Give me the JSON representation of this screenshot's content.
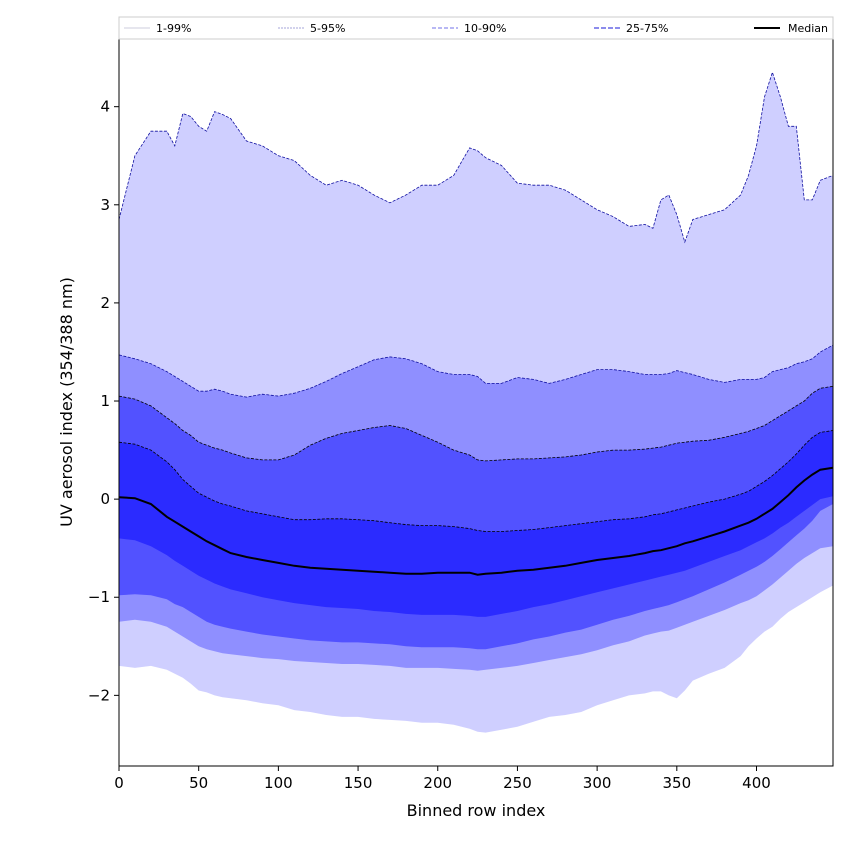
{
  "chart_data": {
    "type": "area",
    "title": "",
    "xlabel": "Binned row index",
    "ylabel": "UV aerosol index (354/388 nm)",
    "xlim": [
      0,
      448
    ],
    "ylim": [
      -2.72,
      4.7
    ],
    "xticks": [
      0,
      50,
      100,
      150,
      200,
      250,
      300,
      350,
      400
    ],
    "yticks": [
      -2,
      -1,
      0,
      1,
      2,
      3,
      4
    ],
    "legend": {
      "placement": "top",
      "entries": [
        "1-99%",
        "5-95%",
        "10-90%",
        "25-75%",
        "Median"
      ]
    },
    "x": [
      0,
      10,
      20,
      30,
      35,
      40,
      45,
      50,
      55,
      60,
      65,
      70,
      80,
      90,
      100,
      110,
      120,
      130,
      140,
      150,
      160,
      170,
      180,
      190,
      200,
      210,
      220,
      225,
      230,
      240,
      250,
      260,
      270,
      280,
      290,
      300,
      310,
      320,
      330,
      335,
      340,
      345,
      350,
      355,
      360,
      370,
      380,
      390,
      395,
      400,
      405,
      410,
      415,
      420,
      425,
      430,
      435,
      440,
      448
    ],
    "bands": [
      {
        "name": "1-99%",
        "color": "#cfcfff",
        "edge": "#1010a0",
        "upper": [
          2.85,
          3.5,
          3.75,
          3.75,
          3.6,
          3.93,
          3.9,
          3.8,
          3.75,
          3.95,
          3.92,
          3.88,
          3.65,
          3.6,
          3.5,
          3.45,
          3.3,
          3.2,
          3.25,
          3.2,
          3.1,
          3.02,
          3.1,
          3.2,
          3.2,
          3.3,
          3.58,
          3.55,
          3.48,
          3.4,
          3.22,
          3.2,
          3.2,
          3.15,
          3.05,
          2.95,
          2.88,
          2.78,
          2.8,
          2.76,
          3.05,
          3.1,
          2.9,
          2.62,
          2.85,
          2.9,
          2.95,
          3.1,
          3.3,
          3.6,
          4.1,
          4.35,
          4.1,
          3.8,
          3.8,
          3.05,
          3.05,
          3.25,
          3.3
        ],
        "lower": [
          -1.7,
          -1.72,
          -1.7,
          -1.74,
          -1.78,
          -1.82,
          -1.88,
          -1.95,
          -1.97,
          -2.0,
          -2.02,
          -2.03,
          -2.05,
          -2.08,
          -2.1,
          -2.15,
          -2.17,
          -2.2,
          -2.22,
          -2.22,
          -2.24,
          -2.25,
          -2.26,
          -2.28,
          -2.28,
          -2.3,
          -2.34,
          -2.37,
          -2.38,
          -2.35,
          -2.32,
          -2.27,
          -2.22,
          -2.2,
          -2.17,
          -2.1,
          -2.05,
          -2.0,
          -1.98,
          -1.96,
          -1.96,
          -2.0,
          -2.03,
          -1.95,
          -1.85,
          -1.78,
          -1.72,
          -1.6,
          -1.5,
          -1.42,
          -1.35,
          -1.3,
          -1.22,
          -1.15,
          -1.1,
          -1.05,
          -1.0,
          -0.95,
          -0.88
        ]
      },
      {
        "name": "5-95%",
        "color": "#8f8fff",
        "edge": "#1010a0",
        "upper": [
          1.47,
          1.43,
          1.38,
          1.3,
          1.25,
          1.2,
          1.15,
          1.1,
          1.1,
          1.12,
          1.1,
          1.07,
          1.04,
          1.07,
          1.05,
          1.08,
          1.13,
          1.2,
          1.28,
          1.35,
          1.42,
          1.45,
          1.43,
          1.38,
          1.3,
          1.27,
          1.27,
          1.25,
          1.18,
          1.18,
          1.24,
          1.22,
          1.18,
          1.22,
          1.27,
          1.32,
          1.32,
          1.3,
          1.27,
          1.27,
          1.27,
          1.28,
          1.31,
          1.29,
          1.27,
          1.22,
          1.19,
          1.22,
          1.22,
          1.22,
          1.24,
          1.3,
          1.32,
          1.34,
          1.38,
          1.4,
          1.43,
          1.5,
          1.57
        ],
        "lower": [
          -1.25,
          -1.23,
          -1.25,
          -1.3,
          -1.35,
          -1.4,
          -1.45,
          -1.5,
          -1.53,
          -1.55,
          -1.57,
          -1.58,
          -1.6,
          -1.62,
          -1.63,
          -1.65,
          -1.66,
          -1.67,
          -1.68,
          -1.68,
          -1.69,
          -1.7,
          -1.72,
          -1.72,
          -1.72,
          -1.73,
          -1.74,
          -1.75,
          -1.74,
          -1.72,
          -1.7,
          -1.67,
          -1.64,
          -1.61,
          -1.58,
          -1.54,
          -1.49,
          -1.45,
          -1.39,
          -1.37,
          -1.35,
          -1.34,
          -1.31,
          -1.28,
          -1.25,
          -1.19,
          -1.13,
          -1.06,
          -1.03,
          -0.99,
          -0.93,
          -0.87,
          -0.8,
          -0.73,
          -0.66,
          -0.6,
          -0.55,
          -0.5,
          -0.48
        ]
      },
      {
        "name": "10-90%",
        "color": "#5252ff",
        "edge": "#000000",
        "upper": [
          1.05,
          1.02,
          0.95,
          0.83,
          0.77,
          0.7,
          0.65,
          0.58,
          0.55,
          0.52,
          0.5,
          0.47,
          0.42,
          0.4,
          0.4,
          0.45,
          0.55,
          0.62,
          0.67,
          0.7,
          0.73,
          0.75,
          0.72,
          0.65,
          0.58,
          0.5,
          0.45,
          0.4,
          0.39,
          0.4,
          0.41,
          0.41,
          0.42,
          0.43,
          0.45,
          0.48,
          0.5,
          0.5,
          0.51,
          0.52,
          0.53,
          0.55,
          0.57,
          0.58,
          0.59,
          0.6,
          0.63,
          0.67,
          0.69,
          0.72,
          0.75,
          0.8,
          0.85,
          0.9,
          0.95,
          1.0,
          1.08,
          1.13,
          1.15
        ],
        "lower": [
          -0.98,
          -0.97,
          -0.98,
          -1.02,
          -1.07,
          -1.1,
          -1.15,
          -1.2,
          -1.25,
          -1.28,
          -1.3,
          -1.32,
          -1.35,
          -1.38,
          -1.4,
          -1.42,
          -1.44,
          -1.45,
          -1.46,
          -1.46,
          -1.47,
          -1.48,
          -1.5,
          -1.51,
          -1.51,
          -1.51,
          -1.52,
          -1.53,
          -1.53,
          -1.5,
          -1.47,
          -1.43,
          -1.4,
          -1.36,
          -1.33,
          -1.28,
          -1.23,
          -1.19,
          -1.14,
          -1.12,
          -1.1,
          -1.08,
          -1.05,
          -1.02,
          -0.99,
          -0.92,
          -0.85,
          -0.77,
          -0.73,
          -0.69,
          -0.64,
          -0.58,
          -0.51,
          -0.44,
          -0.37,
          -0.3,
          -0.22,
          -0.12,
          -0.05
        ]
      },
      {
        "name": "25-75%",
        "color": "#2b2bff",
        "edge": "#000000",
        "upper": [
          0.58,
          0.56,
          0.5,
          0.38,
          0.3,
          0.2,
          0.13,
          0.06,
          0.02,
          -0.02,
          -0.05,
          -0.07,
          -0.12,
          -0.15,
          -0.18,
          -0.21,
          -0.21,
          -0.2,
          -0.2,
          -0.21,
          -0.22,
          -0.24,
          -0.26,
          -0.27,
          -0.27,
          -0.28,
          -0.3,
          -0.32,
          -0.33,
          -0.33,
          -0.32,
          -0.31,
          -0.29,
          -0.27,
          -0.25,
          -0.23,
          -0.21,
          -0.2,
          -0.18,
          -0.16,
          -0.15,
          -0.13,
          -0.11,
          -0.09,
          -0.07,
          -0.03,
          0.0,
          0.05,
          0.08,
          0.13,
          0.18,
          0.24,
          0.31,
          0.38,
          0.46,
          0.55,
          0.63,
          0.68,
          0.7
        ],
        "lower": [
          -0.4,
          -0.42,
          -0.48,
          -0.57,
          -0.63,
          -0.68,
          -0.73,
          -0.78,
          -0.82,
          -0.86,
          -0.89,
          -0.92,
          -0.96,
          -1.0,
          -1.03,
          -1.06,
          -1.08,
          -1.1,
          -1.11,
          -1.12,
          -1.14,
          -1.15,
          -1.17,
          -1.18,
          -1.18,
          -1.18,
          -1.19,
          -1.2,
          -1.2,
          -1.17,
          -1.14,
          -1.1,
          -1.07,
          -1.03,
          -0.99,
          -0.95,
          -0.91,
          -0.87,
          -0.83,
          -0.81,
          -0.79,
          -0.77,
          -0.75,
          -0.73,
          -0.7,
          -0.64,
          -0.58,
          -0.52,
          -0.48,
          -0.44,
          -0.4,
          -0.35,
          -0.29,
          -0.24,
          -0.18,
          -0.12,
          -0.06,
          0.0,
          0.03
        ]
      }
    ],
    "series": [
      {
        "name": "Median",
        "color": "#000000",
        "values": [
          0.02,
          0.01,
          -0.05,
          -0.18,
          -0.23,
          -0.28,
          -0.33,
          -0.38,
          -0.43,
          -0.47,
          -0.51,
          -0.55,
          -0.59,
          -0.62,
          -0.65,
          -0.68,
          -0.7,
          -0.71,
          -0.72,
          -0.73,
          -0.74,
          -0.75,
          -0.76,
          -0.76,
          -0.75,
          -0.75,
          -0.75,
          -0.77,
          -0.76,
          -0.75,
          -0.73,
          -0.72,
          -0.7,
          -0.68,
          -0.65,
          -0.62,
          -0.6,
          -0.58,
          -0.55,
          -0.53,
          -0.52,
          -0.5,
          -0.48,
          -0.45,
          -0.43,
          -0.38,
          -0.33,
          -0.27,
          -0.24,
          -0.2,
          -0.15,
          -0.1,
          -0.03,
          0.04,
          0.12,
          0.19,
          0.25,
          0.3,
          0.32
        ]
      }
    ]
  }
}
